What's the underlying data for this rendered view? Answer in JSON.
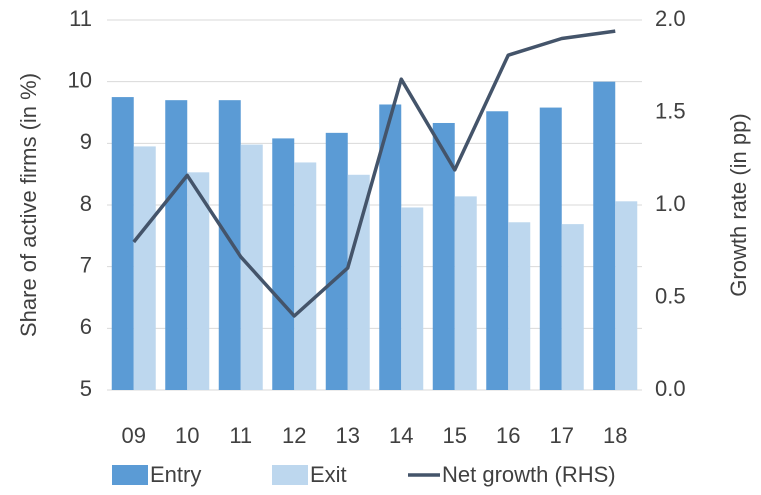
{
  "chart_data": {
    "type": "bar-line",
    "categories": [
      "09",
      "10",
      "11",
      "12",
      "13",
      "14",
      "15",
      "16",
      "17",
      "18"
    ],
    "y_label": "Share of active firms (in %)",
    "y2_label": "Growth rate (in pp)",
    "ylim": [
      5,
      11
    ],
    "yticks": [
      5,
      6,
      7,
      8,
      9,
      10,
      11
    ],
    "y2lim": [
      0,
      2
    ],
    "y2ticks": [
      {
        "value": 0,
        "label": "0.0"
      },
      {
        "value": 0.5,
        "label": "0.5"
      },
      {
        "value": 1,
        "label": "1.0"
      },
      {
        "value": 1.5,
        "label": "1.5"
      },
      {
        "value": 2,
        "label": "2.0"
      }
    ],
    "grid": true,
    "series": [
      {
        "name": "Entry",
        "type": "bar",
        "color": "#5b9bd5",
        "values": [
          9.75,
          9.7,
          9.7,
          9.08,
          9.17,
          9.63,
          9.33,
          9.52,
          9.58,
          10.0
        ]
      },
      {
        "name": "Exit",
        "type": "bar",
        "color": "#bdd7ee",
        "values": [
          8.95,
          8.53,
          8.98,
          8.69,
          8.49,
          7.96,
          8.14,
          7.72,
          7.69,
          8.06
        ]
      },
      {
        "name": "Net growth (RHS)",
        "type": "line",
        "axis": "y2",
        "color": "#44546a",
        "values": [
          0.8,
          1.16,
          0.72,
          0.4,
          0.66,
          1.68,
          1.19,
          1.81,
          1.9,
          1.94
        ]
      }
    ]
  }
}
